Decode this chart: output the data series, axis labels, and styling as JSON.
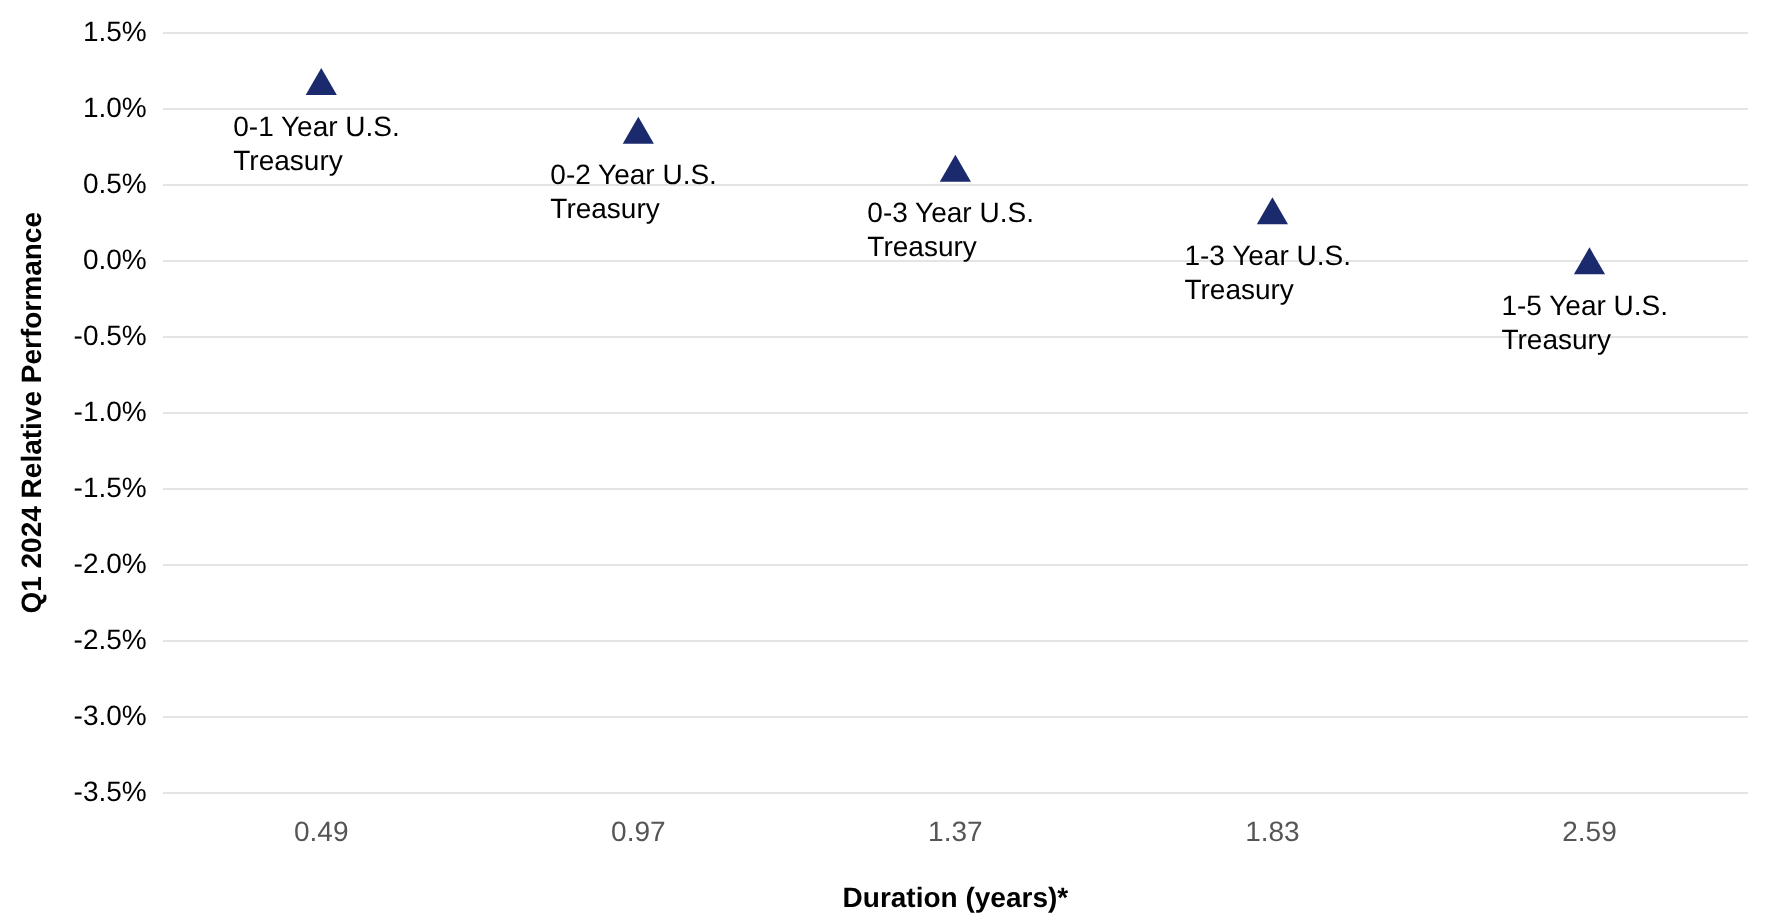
{
  "chart_data": {
    "type": "scatter",
    "xlabel": "Duration (years)*",
    "ylabel": "Q1 2024 Relative Performance",
    "categories": [
      "0.49",
      "0.97",
      "1.37",
      "1.83",
      "2.59"
    ],
    "series": [
      {
        "color": "#1a2a6c",
        "values": [
          1.15,
          0.83,
          0.58,
          0.3,
          -0.03
        ]
      }
    ],
    "marker": "triangle",
    "ylim": [
      -3.5,
      1.5
    ],
    "yticks": [
      {
        "value": -3.5,
        "label": "-3.5%"
      },
      {
        "value": -3,
        "label": "-3.0%"
      },
      {
        "value": -2.5,
        "label": "-2.5%"
      },
      {
        "value": -2,
        "label": "-2.0%"
      },
      {
        "value": -1.5,
        "label": "-1.5%"
      },
      {
        "value": -1,
        "label": "-1.0%"
      },
      {
        "value": -0.5,
        "label": "-0.5%"
      },
      {
        "value": 0,
        "label": "0.0%"
      },
      {
        "value": 0.5,
        "label": "0.5%"
      },
      {
        "value": 1,
        "label": "1.0%"
      },
      {
        "value": 1.5,
        "label": "1.5%"
      }
    ],
    "grid": "y",
    "legend": false,
    "annotations": [
      {
        "text": "0-1 Year U.S. Treasury",
        "x": "0.49",
        "y": 1.15
      },
      {
        "text": "0-2 Year U.S. Treasury",
        "x": "0.97",
        "y": 0.83
      },
      {
        "text": "0-3 Year U.S. Treasury",
        "x": "1.37",
        "y": 0.58
      },
      {
        "text": "1-3 Year U.S. Treasury",
        "x": "1.83",
        "y": 0.3
      },
      {
        "text": "1-5 Year U.S. Treasury",
        "x": "2.59",
        "y": -0.03
      }
    ]
  }
}
